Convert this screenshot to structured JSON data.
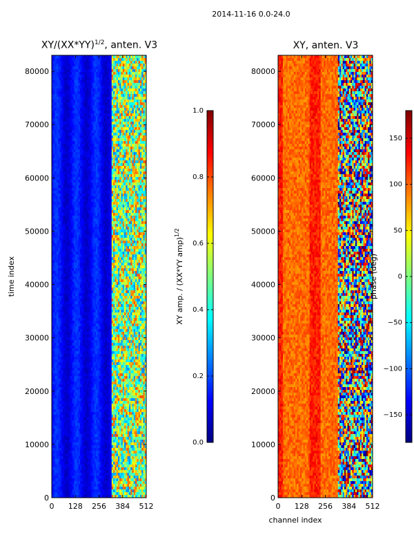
{
  "figure": {
    "suptitle": "2014-11-16 0.0-24.0"
  },
  "colors": {
    "jet": [
      "#00007f",
      "#0000ff",
      "#007fff",
      "#00ffff",
      "#7fff7f",
      "#ffff00",
      "#ff7f00",
      "#ff0000",
      "#7f0000"
    ]
  },
  "chart_data": [
    {
      "type": "heatmap",
      "title": "XY/(XX*YY)",
      "title_exponent": "1/2",
      "title_suffix": ", anten. V3",
      "xlabel": "",
      "ylabel": "time index",
      "xlim": [
        0,
        512
      ],
      "ylim": [
        0,
        83000
      ],
      "xticks": [
        0,
        128,
        256,
        384,
        512
      ],
      "yticks": [
        0,
        10000,
        20000,
        30000,
        40000,
        50000,
        60000,
        70000,
        80000
      ],
      "colorbar": {
        "label": "XY amp. / (XX*YY amp)",
        "label_exponent": "1/2",
        "range": [
          0.0,
          1.0
        ],
        "ticks": [
          "0.0",
          "0.2",
          "0.4",
          "0.6",
          "0.8",
          "1.0"
        ],
        "colormap": "jet"
      }
    },
    {
      "type": "heatmap",
      "title": "XY, anten. V3",
      "xlabel": "channel index",
      "ylabel": "",
      "xlim": [
        0,
        512
      ],
      "ylim": [
        0,
        83000
      ],
      "xticks": [
        0,
        128,
        256,
        384,
        512
      ],
      "yticks": [
        0,
        10000,
        20000,
        30000,
        40000,
        50000,
        60000,
        70000,
        80000
      ],
      "colorbar": {
        "label": "phase (deg)",
        "range": [
          -180,
          180
        ],
        "ticks": [
          "−150",
          "−100",
          "−50",
          "0",
          "50",
          "100",
          "150"
        ],
        "colormap": "jet"
      }
    }
  ]
}
